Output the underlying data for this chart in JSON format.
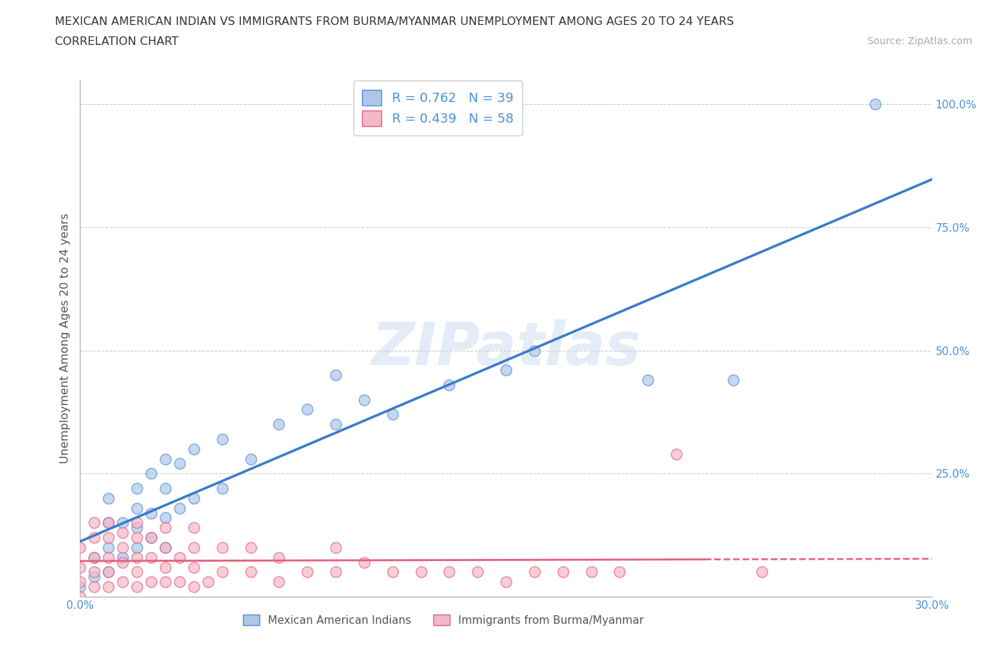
{
  "title_line1": "MEXICAN AMERICAN INDIAN VS IMMIGRANTS FROM BURMA/MYANMAR UNEMPLOYMENT AMONG AGES 20 TO 24 YEARS",
  "title_line2": "CORRELATION CHART",
  "source": "Source: ZipAtlas.com",
  "ylabel": "Unemployment Among Ages 20 to 24 years",
  "xlim": [
    0.0,
    0.3
  ],
  "ylim": [
    0.0,
    1.05
  ],
  "xticks": [
    0.0,
    0.05,
    0.1,
    0.15,
    0.2,
    0.25,
    0.3
  ],
  "xticklabels": [
    "0.0%",
    "",
    "",
    "",
    "",
    "",
    "30.0%"
  ],
  "yticks": [
    0.0,
    0.25,
    0.5,
    0.75,
    1.0
  ],
  "yticklabels": [
    "",
    "25.0%",
    "50.0%",
    "75.0%",
    "100.0%"
  ],
  "blue_R": 0.762,
  "blue_N": 39,
  "pink_R": 0.439,
  "pink_N": 58,
  "blue_color": "#aec6e8",
  "pink_color": "#f5b8c8",
  "blue_line_color": "#3a7bc8",
  "pink_line_color": "#e8607a",
  "blue_scatter_edge": "#4a90d9",
  "pink_scatter_edge": "#e06080",
  "watermark": "ZIPatlas",
  "legend_R_color": "#4a90d9",
  "axis_label_color": "#4a90d9",
  "blue_points_x": [
    0.0,
    0.005,
    0.005,
    0.01,
    0.01,
    0.01,
    0.01,
    0.015,
    0.015,
    0.02,
    0.02,
    0.02,
    0.02,
    0.025,
    0.025,
    0.025,
    0.03,
    0.03,
    0.03,
    0.03,
    0.035,
    0.035,
    0.04,
    0.04,
    0.05,
    0.05,
    0.06,
    0.07,
    0.08,
    0.09,
    0.09,
    0.1,
    0.11,
    0.13,
    0.15,
    0.16,
    0.2,
    0.23,
    0.28
  ],
  "blue_points_y": [
    0.02,
    0.04,
    0.08,
    0.05,
    0.1,
    0.15,
    0.2,
    0.08,
    0.15,
    0.1,
    0.14,
    0.18,
    0.22,
    0.12,
    0.17,
    0.25,
    0.1,
    0.16,
    0.22,
    0.28,
    0.18,
    0.27,
    0.2,
    0.3,
    0.22,
    0.32,
    0.28,
    0.35,
    0.38,
    0.35,
    0.45,
    0.4,
    0.37,
    0.43,
    0.46,
    0.5,
    0.44,
    0.44,
    1.0
  ],
  "pink_points_x": [
    0.0,
    0.0,
    0.0,
    0.0,
    0.005,
    0.005,
    0.005,
    0.005,
    0.005,
    0.01,
    0.01,
    0.01,
    0.01,
    0.01,
    0.015,
    0.015,
    0.015,
    0.015,
    0.02,
    0.02,
    0.02,
    0.02,
    0.02,
    0.025,
    0.025,
    0.025,
    0.03,
    0.03,
    0.03,
    0.03,
    0.035,
    0.035,
    0.04,
    0.04,
    0.04,
    0.04,
    0.045,
    0.05,
    0.05,
    0.06,
    0.06,
    0.07,
    0.07,
    0.08,
    0.09,
    0.09,
    0.1,
    0.11,
    0.12,
    0.13,
    0.14,
    0.15,
    0.16,
    0.17,
    0.18,
    0.19,
    0.21,
    0.24
  ],
  "pink_points_y": [
    0.0,
    0.03,
    0.06,
    0.1,
    0.02,
    0.05,
    0.08,
    0.12,
    0.15,
    0.02,
    0.05,
    0.08,
    0.12,
    0.15,
    0.03,
    0.07,
    0.1,
    0.13,
    0.02,
    0.05,
    0.08,
    0.12,
    0.15,
    0.03,
    0.08,
    0.12,
    0.03,
    0.06,
    0.1,
    0.14,
    0.03,
    0.08,
    0.02,
    0.06,
    0.1,
    0.14,
    0.03,
    0.05,
    0.1,
    0.05,
    0.1,
    0.03,
    0.08,
    0.05,
    0.05,
    0.1,
    0.07,
    0.05,
    0.05,
    0.05,
    0.05,
    0.03,
    0.05,
    0.05,
    0.05,
    0.05,
    0.29,
    0.05
  ]
}
